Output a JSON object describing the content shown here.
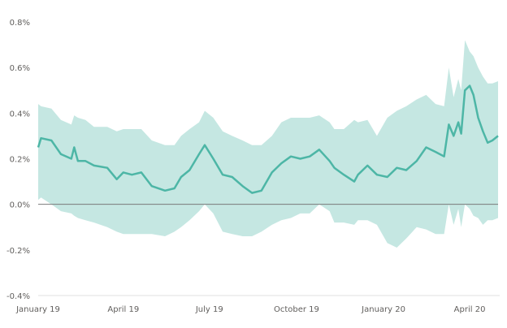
{
  "chart_data": {
    "type": "area",
    "title": "",
    "xlabel": "",
    "ylabel": "",
    "ylim": [
      -0.4,
      0.8
    ],
    "xlim": [
      "2019-01-01",
      "2020-05-01"
    ],
    "y_ticks": [
      "0.8%",
      "0.6%",
      "0.4%",
      "0.2%",
      "0.0%",
      "-0.2%",
      "-0.4%"
    ],
    "y_tick_values": [
      0.8,
      0.6,
      0.4,
      0.2,
      0.0,
      -0.2,
      -0.4
    ],
    "x_ticks": [
      "January 19",
      "April 19",
      "July 19",
      "October 19",
      "January 20",
      "April 20"
    ],
    "x_tick_dates": [
      "2019-01-01",
      "2019-04-01",
      "2019-07-01",
      "2019-10-01",
      "2020-01-01",
      "2020-04-01"
    ],
    "grid": false,
    "colors": {
      "line": "#4db6a6",
      "band": "#c5e7e2",
      "zero_line": "#7a7a7a",
      "axis": "#e1e1e1"
    },
    "series": [
      {
        "dates": [
          "2019-01-01",
          "2019-01-04",
          "2019-01-15",
          "2019-01-25",
          "2019-02-05",
          "2019-02-08",
          "2019-02-12",
          "2019-02-20",
          "2019-03-01",
          "2019-03-15",
          "2019-03-25",
          "2019-04-01",
          "2019-04-10",
          "2019-04-20",
          "2019-05-01",
          "2019-05-15",
          "2019-05-25",
          "2019-06-01",
          "2019-06-10",
          "2019-06-20",
          "2019-06-26",
          "2019-07-05",
          "2019-07-15",
          "2019-07-25",
          "2019-08-05",
          "2019-08-15",
          "2019-08-25",
          "2019-09-05",
          "2019-09-15",
          "2019-09-25",
          "2019-10-05",
          "2019-10-15",
          "2019-10-25",
          "2019-11-05",
          "2019-11-10",
          "2019-11-20",
          "2019-12-01",
          "2019-12-05",
          "2019-12-15",
          "2019-12-25",
          "2020-01-05",
          "2020-01-15",
          "2020-01-25",
          "2020-02-05",
          "2020-02-15",
          "2020-02-25",
          "2020-03-05",
          "2020-03-10",
          "2020-03-15",
          "2020-03-20",
          "2020-03-23",
          "2020-03-27",
          "2020-04-01",
          "2020-04-05",
          "2020-04-10",
          "2020-04-15",
          "2020-04-20",
          "2020-04-25",
          "2020-05-01"
        ],
        "mean": [
          0.25,
          0.29,
          0.28,
          0.22,
          0.2,
          0.25,
          0.19,
          0.19,
          0.17,
          0.16,
          0.11,
          0.14,
          0.13,
          0.14,
          0.08,
          0.06,
          0.07,
          0.12,
          0.15,
          0.22,
          0.26,
          0.2,
          0.13,
          0.12,
          0.08,
          0.05,
          0.06,
          0.14,
          0.18,
          0.21,
          0.2,
          0.21,
          0.24,
          0.19,
          0.16,
          0.13,
          0.1,
          0.13,
          0.17,
          0.13,
          0.12,
          0.16,
          0.15,
          0.19,
          0.25,
          0.23,
          0.21,
          0.35,
          0.3,
          0.36,
          0.31,
          0.5,
          0.52,
          0.48,
          0.38,
          0.32,
          0.27,
          0.28,
          0.3
        ],
        "lower": [
          0.02,
          0.03,
          0.0,
          -0.03,
          -0.04,
          -0.05,
          -0.06,
          -0.07,
          -0.08,
          -0.1,
          -0.12,
          -0.13,
          -0.13,
          -0.13,
          -0.13,
          -0.14,
          -0.12,
          -0.1,
          -0.07,
          -0.03,
          0.0,
          -0.04,
          -0.12,
          -0.13,
          -0.14,
          -0.14,
          -0.12,
          -0.09,
          -0.07,
          -0.06,
          -0.04,
          -0.04,
          0.0,
          -0.03,
          -0.08,
          -0.08,
          -0.09,
          -0.07,
          -0.07,
          -0.09,
          -0.17,
          -0.19,
          -0.15,
          -0.1,
          -0.11,
          -0.13,
          -0.13,
          0.0,
          -0.09,
          -0.02,
          -0.1,
          0.0,
          -0.02,
          -0.05,
          -0.06,
          -0.09,
          -0.07,
          -0.07,
          -0.06
        ],
        "upper": [
          0.44,
          0.43,
          0.42,
          0.37,
          0.35,
          0.39,
          0.38,
          0.37,
          0.34,
          0.34,
          0.32,
          0.33,
          0.33,
          0.33,
          0.28,
          0.26,
          0.26,
          0.3,
          0.33,
          0.36,
          0.41,
          0.38,
          0.32,
          0.3,
          0.28,
          0.26,
          0.26,
          0.3,
          0.36,
          0.38,
          0.38,
          0.38,
          0.39,
          0.36,
          0.33,
          0.33,
          0.37,
          0.36,
          0.37,
          0.3,
          0.38,
          0.41,
          0.43,
          0.46,
          0.48,
          0.44,
          0.43,
          0.6,
          0.47,
          0.55,
          0.5,
          0.72,
          0.67,
          0.65,
          0.6,
          0.56,
          0.53,
          0.53,
          0.54
        ]
      }
    ]
  }
}
